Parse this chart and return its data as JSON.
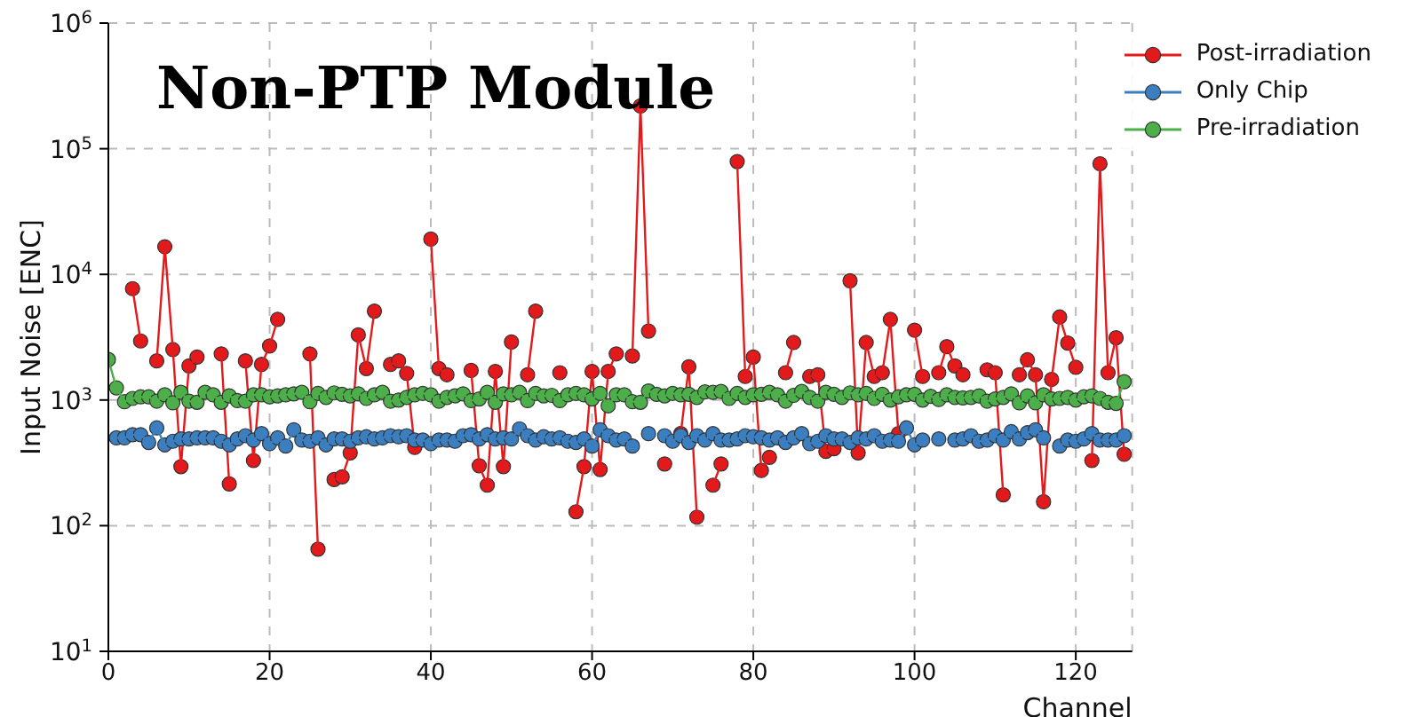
{
  "chart_data": {
    "type": "line",
    "title": "Non-PTP Module",
    "xlabel": "Channel",
    "ylabel": "Input Noise [ENC]",
    "x": [
      0,
      1,
      2,
      3,
      4,
      5,
      6,
      7,
      8,
      9,
      10,
      11,
      12,
      13,
      14,
      15,
      16,
      17,
      18,
      19,
      20,
      21,
      22,
      23,
      24,
      25,
      26,
      27,
      28,
      29,
      30,
      31,
      32,
      33,
      34,
      35,
      36,
      37,
      38,
      39,
      40,
      41,
      42,
      43,
      44,
      45,
      46,
      47,
      48,
      49,
      50,
      51,
      52,
      53,
      54,
      55,
      56,
      57,
      58,
      59,
      60,
      61,
      62,
      63,
      64,
      65,
      66,
      67,
      68,
      69,
      70,
      71,
      72,
      73,
      74,
      75,
      76,
      77,
      78,
      79,
      80,
      81,
      82,
      83,
      84,
      85,
      86,
      87,
      88,
      89,
      90,
      91,
      92,
      93,
      94,
      95,
      96,
      97,
      98,
      99,
      100,
      101,
      102,
      103,
      104,
      105,
      106,
      107,
      108,
      109,
      110,
      111,
      112,
      113,
      114,
      115,
      116,
      117,
      118,
      119,
      120,
      121,
      122,
      123,
      124,
      125,
      126
    ],
    "series": [
      {
        "name": "Post-irradiation",
        "color": "#e31a1c",
        "values": [
          null,
          null,
          null,
          7700,
          2950,
          null,
          2050,
          16600,
          2520,
          295,
          1870,
          2200,
          null,
          null,
          2330,
          215,
          null,
          2050,
          330,
          1920,
          2690,
          4380,
          null,
          null,
          null,
          2330,
          65,
          null,
          233,
          245,
          380,
          3300,
          1780,
          5100,
          null,
          1920,
          2050,
          1630,
          420,
          null,
          19100,
          1780,
          1590,
          null,
          null,
          1720,
          300,
          210,
          1690,
          295,
          2900,
          null,
          1590,
          5100,
          null,
          null,
          1650,
          null,
          129,
          295,
          1690,
          280,
          1690,
          2330,
          null,
          2240,
          219000,
          3540,
          null,
          310,
          null,
          540,
          1840,
          117,
          null,
          210,
          310,
          null,
          79000,
          1540,
          2200,
          275,
          350,
          null,
          1650,
          2870,
          null,
          1540,
          1590,
          390,
          410,
          null,
          8900,
          380,
          2870,
          1540,
          1650,
          4380,
          540,
          null,
          3600,
          1540,
          null,
          1650,
          2660,
          1870,
          1590,
          null,
          null,
          1740,
          1650,
          176,
          null,
          1590,
          2090,
          1590,
          155,
          1460,
          4580,
          2840,
          1820,
          null,
          330,
          76000,
          1650,
          3130,
          370
        ]
      },
      {
        "name": "Only Chip",
        "color": "#3b7fc0",
        "values": [
          null,
          500,
          500,
          530,
          530,
          460,
          600,
          440,
          470,
          490,
          490,
          500,
          500,
          500,
          470,
          440,
          490,
          520,
          480,
          540,
          450,
          500,
          430,
          580,
          480,
          470,
          500,
          440,
          490,
          490,
          470,
          500,
          510,
          490,
          500,
          520,
          510,
          520,
          480,
          480,
          450,
          480,
          480,
          470,
          520,
          530,
          490,
          530,
          490,
          500,
          490,
          590,
          520,
          480,
          510,
          490,
          500,
          470,
          460,
          490,
          430,
          580,
          520,
          480,
          490,
          430,
          null,
          540,
          null,
          520,
          470,
          520,
          460,
          520,
          480,
          540,
          480,
          480,
          490,
          520,
          510,
          500,
          480,
          500,
          460,
          500,
          540,
          450,
          470,
          520,
          490,
          490,
          460,
          500,
          490,
          520,
          470,
          480,
          470,
          600,
          440,
          480,
          null,
          490,
          null,
          480,
          490,
          520,
          470,
          480,
          520,
          480,
          560,
          490,
          550,
          580,
          500,
          null,
          430,
          480,
          470,
          490,
          540,
          480,
          480,
          480,
          520
        ]
      },
      {
        "name": "Pre-irradiation",
        "color": "#4daf4a",
        "values": [
          2100,
          1250,
          970,
          1030,
          1060,
          1060,
          980,
          1100,
          950,
          1150,
          980,
          960,
          1150,
          1100,
          960,
          1080,
          990,
          980,
          1100,
          1100,
          1060,
          1080,
          1100,
          1120,
          1150,
          970,
          1130,
          1050,
          1140,
          1110,
          1080,
          1120,
          1030,
          1100,
          1150,
          980,
          1000,
          1050,
          1100,
          1130,
          1100,
          980,
          1050,
          1080,
          1120,
          990,
          1020,
          1150,
          960,
          1120,
          1100,
          1150,
          990,
          1130,
          1080,
          1090,
          990,
          1100,
          1130,
          1100,
          1020,
          1130,
          900,
          1100,
          1100,
          970,
          960,
          1180,
          1110,
          1080,
          1130,
          1100,
          1110,
          1050,
          1160,
          1150,
          1170,
          1030,
          1130,
          1050,
          1100,
          1110,
          1150,
          1100,
          980,
          1090,
          1170,
          1050,
          980,
          1150,
          1110,
          1050,
          1140,
          1100,
          1130,
          1030,
          1110,
          1000,
          1060,
          1100,
          1110,
          1000,
          1070,
          1010,
          1100,
          1050,
          1040,
          1050,
          1080,
          980,
          1020,
          1050,
          1120,
          950,
          1080,
          950,
          1100,
          1020,
          1030,
          1050,
          1000,
          1060,
          1080,
          1030,
          960,
          940,
          1400
        ]
      }
    ],
    "xlim": [
      0,
      127
    ],
    "xticks": [
      0,
      20,
      40,
      60,
      80,
      100,
      120
    ],
    "ylim": [
      10,
      1000000
    ],
    "yticks": [
      {
        "value": 10,
        "label": "10$^{1}$"
      },
      {
        "value": 100,
        "label": "10$^{2}$"
      },
      {
        "value": 1000,
        "label": "10$^{3}$"
      },
      {
        "value": 10000,
        "label": "10$^{4}$"
      },
      {
        "value": 100000,
        "label": "10$^{5}$"
      },
      {
        "value": 1000000,
        "label": "10$^{6}$"
      }
    ],
    "log": true,
    "grid": true,
    "legend": "top right",
    "marker": "circle",
    "line_style": "solid"
  }
}
